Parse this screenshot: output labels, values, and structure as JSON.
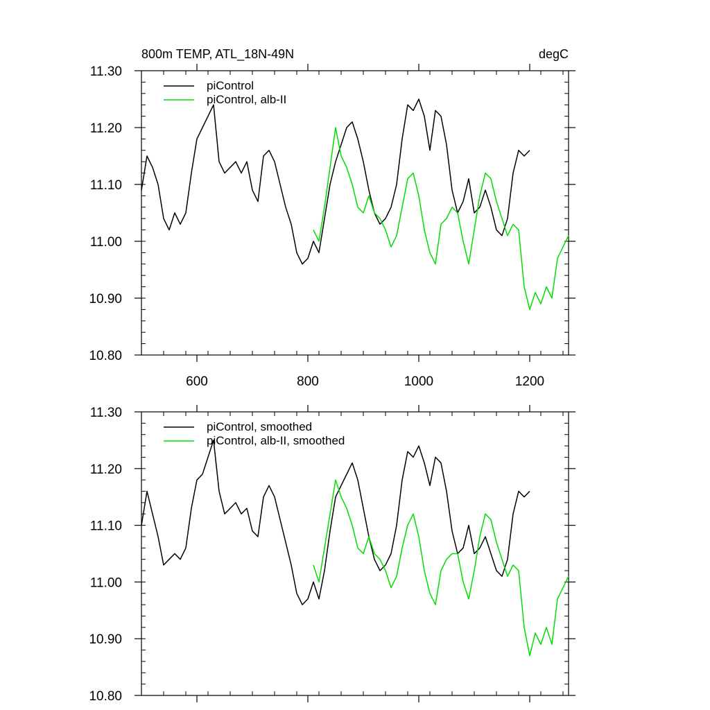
{
  "chart_data": [
    {
      "type": "line",
      "title": "800m TEMP, ATL_18N-49N",
      "units": "degC",
      "xlim": [
        500,
        1270
      ],
      "ylim": [
        10.8,
        11.3
      ],
      "xticks": [
        600,
        800,
        1000,
        1200
      ],
      "yticks": [
        10.8,
        10.9,
        11.0,
        11.1,
        11.2,
        11.3
      ],
      "ytick_labels": [
        "10.80",
        "10.90",
        "11.00",
        "11.10",
        "11.20",
        "11.30"
      ],
      "legend_position": "top-left",
      "series": [
        {
          "name": "piControl",
          "color": "#000000",
          "x": [
            500,
            510,
            520,
            530,
            540,
            550,
            560,
            570,
            580,
            590,
            600,
            610,
            620,
            630,
            640,
            650,
            660,
            670,
            680,
            690,
            700,
            710,
            720,
            730,
            740,
            750,
            760,
            770,
            780,
            790,
            800,
            810,
            820,
            830,
            840,
            850,
            860,
            870,
            880,
            890,
            900,
            910,
            920,
            930,
            940,
            950,
            960,
            970,
            980,
            990,
            1000,
            1010,
            1020,
            1030,
            1040,
            1050,
            1060,
            1070,
            1080,
            1090,
            1100,
            1110,
            1120,
            1130,
            1140,
            1150,
            1160,
            1170,
            1180,
            1190,
            1200
          ],
          "values": [
            11.09,
            11.15,
            11.13,
            11.1,
            11.04,
            11.02,
            11.05,
            11.03,
            11.05,
            11.12,
            11.18,
            11.2,
            11.22,
            11.24,
            11.14,
            11.12,
            11.13,
            11.14,
            11.12,
            11.14,
            11.09,
            11.07,
            11.15,
            11.16,
            11.14,
            11.1,
            11.06,
            11.03,
            10.98,
            10.96,
            10.97,
            11.0,
            10.98,
            11.04,
            11.1,
            11.14,
            11.17,
            11.2,
            11.21,
            11.18,
            11.14,
            11.09,
            11.05,
            11.03,
            11.04,
            11.06,
            11.1,
            11.18,
            11.24,
            11.23,
            11.25,
            11.22,
            11.16,
            11.23,
            11.22,
            11.17,
            11.09,
            11.05,
            11.07,
            11.11,
            11.05,
            11.06,
            11.09,
            11.06,
            11.02,
            11.01,
            11.04,
            11.12,
            11.16,
            11.15,
            11.16
          ]
        },
        {
          "name": "piControl, alb-II",
          "color": "#00dd00",
          "x": [
            810,
            820,
            830,
            840,
            850,
            860,
            870,
            880,
            890,
            900,
            910,
            920,
            930,
            940,
            950,
            960,
            970,
            980,
            990,
            1000,
            1010,
            1020,
            1030,
            1040,
            1050,
            1060,
            1070,
            1080,
            1090,
            1100,
            1110,
            1120,
            1130,
            1140,
            1150,
            1160,
            1170,
            1180,
            1190,
            1200,
            1210,
            1220,
            1230,
            1240,
            1250,
            1260,
            1270
          ],
          "values": [
            11.02,
            11.0,
            11.06,
            11.13,
            11.2,
            11.15,
            11.13,
            11.1,
            11.06,
            11.05,
            11.08,
            11.05,
            11.04,
            11.02,
            10.99,
            11.01,
            11.06,
            11.11,
            11.12,
            11.08,
            11.02,
            10.98,
            10.96,
            11.03,
            11.04,
            11.06,
            11.05,
            11.0,
            10.96,
            11.02,
            11.08,
            11.12,
            11.11,
            11.07,
            11.04,
            11.01,
            11.03,
            11.02,
            10.92,
            10.88,
            10.91,
            10.89,
            10.92,
            10.9,
            10.97,
            10.99,
            11.01
          ]
        }
      ]
    },
    {
      "type": "line",
      "xlim": [
        500,
        1270
      ],
      "ylim": [
        10.8,
        11.3
      ],
      "xticks": [
        600,
        800,
        1000,
        1200
      ],
      "yticks": [
        10.8,
        10.9,
        11.0,
        11.1,
        11.2,
        11.3
      ],
      "ytick_labels": [
        "10.80",
        "10.90",
        "11.00",
        "11.10",
        "11.20",
        "11.30"
      ],
      "legend_position": "top-left",
      "series": [
        {
          "name": "piControl, smoothed",
          "color": "#000000",
          "x": [
            500,
            510,
            520,
            530,
            540,
            550,
            560,
            570,
            580,
            590,
            600,
            610,
            620,
            630,
            640,
            650,
            660,
            670,
            680,
            690,
            700,
            710,
            720,
            730,
            740,
            750,
            760,
            770,
            780,
            790,
            800,
            810,
            820,
            830,
            840,
            850,
            860,
            870,
            880,
            890,
            900,
            910,
            920,
            930,
            940,
            950,
            960,
            970,
            980,
            990,
            1000,
            1010,
            1020,
            1030,
            1040,
            1050,
            1060,
            1070,
            1080,
            1090,
            1100,
            1110,
            1120,
            1130,
            1140,
            1150,
            1160,
            1170,
            1180,
            1190,
            1200
          ],
          "values": [
            11.1,
            11.16,
            11.12,
            11.08,
            11.03,
            11.04,
            11.05,
            11.04,
            11.06,
            11.13,
            11.18,
            11.19,
            11.22,
            11.25,
            11.16,
            11.12,
            11.13,
            11.14,
            11.12,
            11.13,
            11.09,
            11.08,
            11.15,
            11.17,
            11.15,
            11.11,
            11.07,
            11.03,
            10.98,
            10.96,
            10.97,
            11.0,
            10.97,
            11.02,
            11.09,
            11.15,
            11.17,
            11.19,
            11.21,
            11.18,
            11.13,
            11.08,
            11.04,
            11.02,
            11.03,
            11.05,
            11.1,
            11.18,
            11.23,
            11.22,
            11.24,
            11.21,
            11.17,
            11.22,
            11.21,
            11.16,
            11.09,
            11.05,
            11.06,
            11.1,
            11.05,
            11.06,
            11.08,
            11.05,
            11.02,
            11.01,
            11.04,
            11.12,
            11.16,
            11.15,
            11.16
          ]
        },
        {
          "name": "piControl, alb-II, smoothed",
          "color": "#00dd00",
          "x": [
            810,
            820,
            830,
            840,
            850,
            860,
            870,
            880,
            890,
            900,
            910,
            920,
            930,
            940,
            950,
            960,
            970,
            980,
            990,
            1000,
            1010,
            1020,
            1030,
            1040,
            1050,
            1060,
            1070,
            1080,
            1090,
            1100,
            1110,
            1120,
            1130,
            1140,
            1150,
            1160,
            1170,
            1180,
            1190,
            1200,
            1210,
            1220,
            1230,
            1240,
            1250,
            1260,
            1270
          ],
          "values": [
            11.03,
            11.0,
            11.06,
            11.12,
            11.18,
            11.15,
            11.13,
            11.1,
            11.06,
            11.05,
            11.08,
            11.05,
            11.04,
            11.02,
            10.99,
            11.01,
            11.06,
            11.1,
            11.12,
            11.08,
            11.02,
            10.98,
            10.96,
            11.02,
            11.04,
            11.05,
            11.05,
            11.0,
            10.97,
            11.02,
            11.08,
            11.12,
            11.11,
            11.07,
            11.04,
            11.01,
            11.03,
            11.02,
            10.92,
            10.87,
            10.91,
            10.89,
            10.92,
            10.89,
            10.97,
            10.99,
            11.01
          ]
        }
      ]
    }
  ]
}
